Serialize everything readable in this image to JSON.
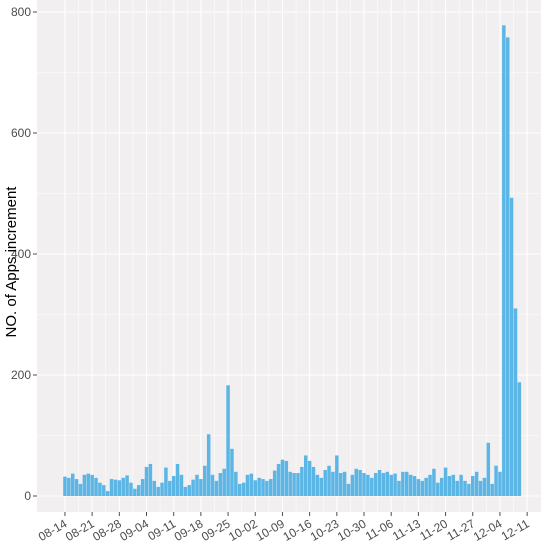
{
  "chart_data": {
    "type": "bar",
    "xlabel": "",
    "ylabel": "NO. of Apps increment",
    "ylim": [
      0,
      800
    ],
    "y_ticks": [
      0,
      200,
      400,
      600,
      800
    ],
    "grid": true,
    "colors": {
      "bar": "#5BB6E6",
      "panel": "#F2EFF1",
      "grid": "#FFFFFF"
    },
    "x_tick_labels": [
      "08-14",
      "08-21",
      "08-28",
      "09-04",
      "09-11",
      "09-18",
      "09-25",
      "10-02",
      "10-09",
      "10-16",
      "10-23",
      "10-30",
      "11-06",
      "11-13",
      "11-20",
      "11-27",
      "12-04",
      "12-11"
    ],
    "categories": [
      "08-14",
      "08-15",
      "08-16",
      "08-17",
      "08-18",
      "08-19",
      "08-20",
      "08-21",
      "08-22",
      "08-23",
      "08-24",
      "08-25",
      "08-26",
      "08-27",
      "08-28",
      "08-29",
      "08-30",
      "08-31",
      "09-01",
      "09-02",
      "09-03",
      "09-04",
      "09-05",
      "09-06",
      "09-07",
      "09-08",
      "09-09",
      "09-10",
      "09-11",
      "09-12",
      "09-13",
      "09-14",
      "09-15",
      "09-16",
      "09-17",
      "09-18",
      "09-19",
      "09-20",
      "09-21",
      "09-22",
      "09-23",
      "09-24",
      "09-25",
      "09-26",
      "09-27",
      "09-28",
      "09-29",
      "09-30",
      "10-01",
      "10-02",
      "10-03",
      "10-04",
      "10-05",
      "10-06",
      "10-07",
      "10-08",
      "10-09",
      "10-10",
      "10-11",
      "10-12",
      "10-13",
      "10-14",
      "10-15",
      "10-16",
      "10-17",
      "10-18",
      "10-19",
      "10-20",
      "10-21",
      "10-22",
      "10-23",
      "10-24",
      "10-25",
      "10-26",
      "10-27",
      "10-28",
      "10-29",
      "10-30",
      "10-31",
      "11-01",
      "11-02",
      "11-03",
      "11-04",
      "11-05",
      "11-06",
      "11-07",
      "11-08",
      "11-09",
      "11-10",
      "11-11",
      "11-12",
      "11-13",
      "11-14",
      "11-15",
      "11-16",
      "11-17",
      "11-18",
      "11-19",
      "11-20",
      "11-21",
      "11-22",
      "11-23",
      "11-24",
      "11-25",
      "11-26",
      "11-27",
      "11-28",
      "11-29",
      "11-30",
      "12-01",
      "12-02",
      "12-03",
      "12-04",
      "12-05",
      "12-06",
      "12-07",
      "12-08",
      "12-09"
    ],
    "values": [
      32,
      30,
      37,
      28,
      20,
      35,
      37,
      35,
      30,
      22,
      18,
      8,
      28,
      27,
      26,
      30,
      34,
      22,
      12,
      18,
      28,
      48,
      53,
      25,
      15,
      22,
      47,
      25,
      33,
      53,
      35,
      15,
      18,
      27,
      35,
      28,
      50,
      102,
      35,
      25,
      38,
      45,
      183,
      78,
      40,
      20,
      22,
      35,
      37,
      26,
      30,
      28,
      25,
      28,
      42,
      53,
      60,
      58,
      40,
      38,
      38,
      48,
      67,
      58,
      48,
      35,
      30,
      43,
      50,
      40,
      67,
      38,
      40,
      20,
      35,
      45,
      43,
      38,
      35,
      30,
      38,
      43,
      38,
      40,
      35,
      37,
      25,
      40,
      40,
      35,
      33,
      28,
      25,
      30,
      35,
      45,
      22,
      30,
      47,
      33,
      35,
      25,
      35,
      25,
      20,
      33,
      40,
      25,
      30,
      88,
      20,
      50,
      40,
      778,
      758,
      493,
      310,
      188
    ]
  }
}
